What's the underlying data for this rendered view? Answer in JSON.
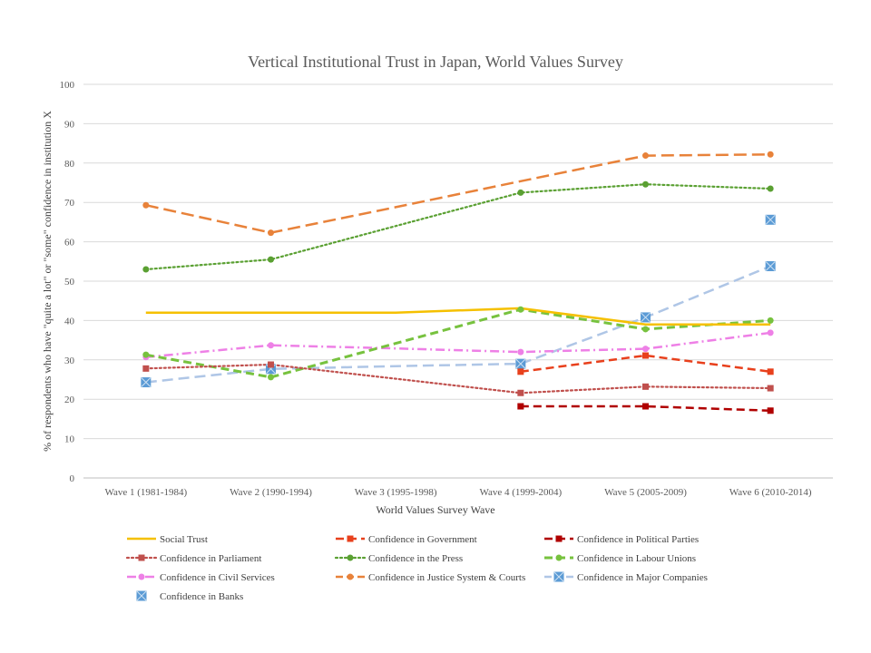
{
  "chart_data": {
    "type": "line",
    "title": "Vertical  Institutional  Trust in Japan, World Values Survey",
    "xlabel": "World Values  Survey Wave",
    "ylabel": "% of respondents who have \"quite a lot\" or \"some\" confidence in institution X",
    "ylim": [
      0,
      100
    ],
    "yticks": [
      0,
      10,
      20,
      30,
      40,
      50,
      60,
      70,
      80,
      90,
      100
    ],
    "categories": [
      "Wave 1 (1981-1984)",
      "Wave 2 (1990-1994)",
      "Wave 3 (1995-1998)",
      "Wave 4 (1999-2004)",
      "Wave 5 (2005-2009)",
      "Wave 6 (2010-2014)"
    ],
    "grid": true,
    "legend_position": "bottom",
    "series": [
      {
        "name": "Social Trust",
        "values": [
          42,
          42,
          42,
          43.1,
          39,
          39
        ],
        "markers": [
          false,
          false,
          false,
          false,
          false,
          false
        ],
        "color": "#f5c000",
        "dash": "",
        "width": 2.5,
        "marker": "none"
      },
      {
        "name": "Confidence in Government",
        "values": [
          null,
          null,
          null,
          27,
          31.1,
          27
        ],
        "color": "#e8401c",
        "dash": "9,5",
        "width": 2.5,
        "marker": "square"
      },
      {
        "name": "Confidence in Political Parties",
        "values": [
          null,
          null,
          null,
          18.2,
          18.2,
          17.1
        ],
        "color": "#b00000",
        "dash": "9,5",
        "width": 2.5,
        "marker": "square"
      },
      {
        "name": "Confidence in Parliament",
        "values": [
          27.8,
          28.8,
          null,
          21.6,
          23.2,
          22.8
        ],
        "color": "#c0504d",
        "dash": "2,3",
        "width": 2.2,
        "marker": "square"
      },
      {
        "name": "Confidence in the Press",
        "values": [
          53,
          55.5,
          null,
          72.5,
          74.6,
          73.5
        ],
        "color": "#5aa032",
        "dash": "2,3",
        "width": 2.2,
        "marker": "circle"
      },
      {
        "name": "Confidence in Labour Unions",
        "values": [
          31.3,
          25.6,
          null,
          42.8,
          37.8,
          40
        ],
        "color": "#77c23e",
        "dash": "9,5",
        "width": 3,
        "marker": "circle"
      },
      {
        "name": "Confidence in Civil Services",
        "values": [
          30.7,
          33.7,
          null,
          32,
          32.8,
          36.9
        ],
        "color": "#ee80e6",
        "dash": "10,4,2,4",
        "width": 2.5,
        "marker": "circle"
      },
      {
        "name": "Confidence in Justice System & Courts",
        "values": [
          69.3,
          62.3,
          null,
          null,
          81.9,
          82.2
        ],
        "color": "#e8823a",
        "dash": "14,6",
        "width": 2.5,
        "marker": "circle"
      },
      {
        "name": "Confidence in Major Companies",
        "values": [
          24.3,
          27.7,
          null,
          29,
          40.8,
          53.8
        ],
        "color": "#afc6e6",
        "dash": "12,6",
        "width": 2.5,
        "marker": "xsquare"
      },
      {
        "name": "Confidence in Banks",
        "values": [
          null,
          null,
          null,
          null,
          null,
          65.6
        ],
        "color": "#5b9bd5",
        "dash": "",
        "width": 2.5,
        "marker": "xsquare"
      }
    ],
    "connect_points": [
      {
        "series": "Social Trust",
        "values": [
          42,
          42,
          42,
          43.1,
          39,
          39
        ]
      },
      {
        "series": "Confidence in Parliament",
        "values": [
          27.8,
          28.8,
          25.2,
          21.6,
          23.2,
          22.8
        ]
      },
      {
        "series": "Confidence in the Press",
        "values": [
          53,
          55.5,
          64,
          72.5,
          74.6,
          73.5
        ]
      },
      {
        "series": "Confidence in Labour Unions",
        "values": [
          31.3,
          25.6,
          34.2,
          42.8,
          37.8,
          40
        ]
      },
      {
        "series": "Confidence in Civil Services",
        "values": [
          30.7,
          33.7,
          32.9,
          32,
          32.8,
          36.9
        ]
      },
      {
        "series": "Confidence in Justice System & Courts",
        "values": [
          69.3,
          62.3,
          68.8,
          75.4,
          81.9,
          82.2
        ]
      },
      {
        "series": "Confidence in Major Companies",
        "values": [
          24.3,
          27.7,
          28.4,
          29,
          40.8,
          53.8
        ]
      }
    ]
  }
}
